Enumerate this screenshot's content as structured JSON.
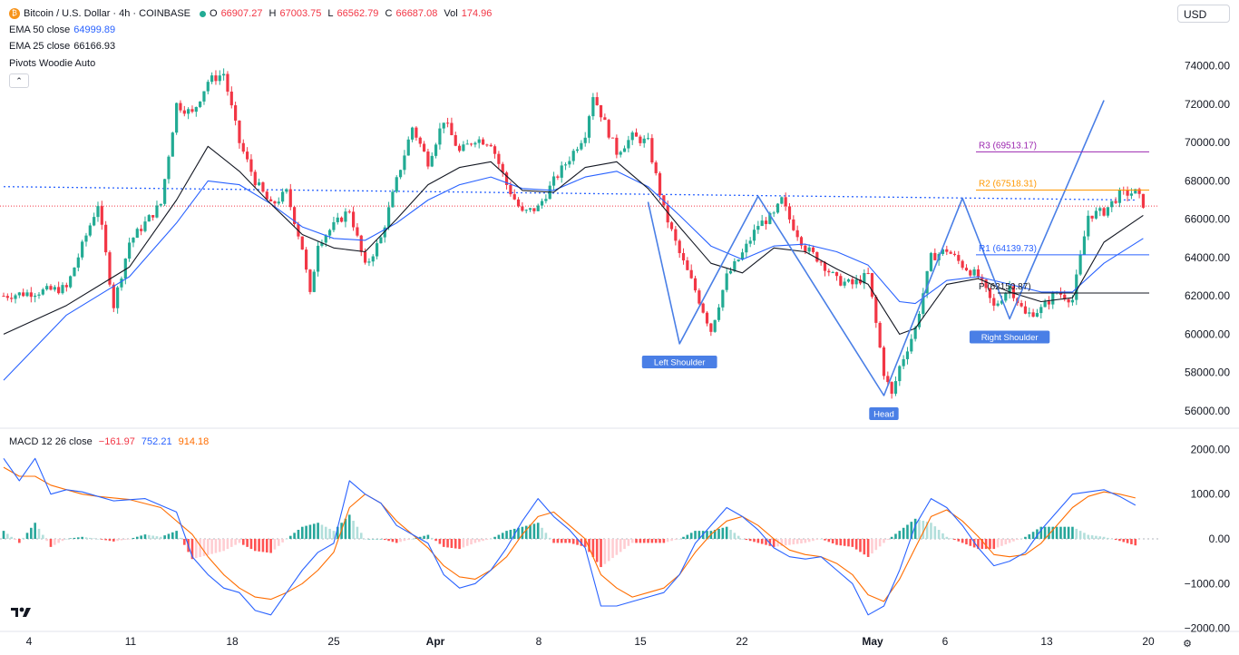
{
  "header": {
    "symbol": "Bitcoin / U.S. Dollar · 4h · COINBASE",
    "o_label": "O",
    "o": "66907.27",
    "h_label": "H",
    "h": "67003.75",
    "l_label": "L",
    "l": "66562.79",
    "c_label": "C",
    "c": "66687.08",
    "vol_label": "Vol",
    "vol": "174.96",
    "currency": "USD",
    "collapse": "⌃"
  },
  "indicators": {
    "ema50_label": "EMA 50 close",
    "ema50_value": "64999.89",
    "ema25_label": "EMA 25 close",
    "ema25_value": "66166.93",
    "pivots_label": "Pivots Woodie Auto",
    "macd_label": "MACD 12 26 close",
    "macd_hist": "−161.97",
    "macd_line": "752.21",
    "macd_signal": "914.18"
  },
  "colors": {
    "up": "#22ab94",
    "down": "#f23645",
    "ema25": "#131722",
    "ema50": "#2962ff",
    "pattern": "#4a7fe6",
    "r3": "#9c27b0",
    "r2": "#ff9800",
    "r1": "#2962ff",
    "p": "#131722",
    "macd": "#2962ff",
    "signal": "#ff6d00"
  },
  "chart_data": [
    {
      "type": "candlestick",
      "title": "Bitcoin / U.S. Dollar · 4h · COINBASE",
      "ylim": [
        55000,
        75500
      ],
      "y_ticks": [
        "74000.00",
        "72000.00",
        "70000.00",
        "68000.00",
        "66000.00",
        "64000.00",
        "62000.00",
        "60000.00",
        "58000.00",
        "56000.00"
      ],
      "x_ticks": [
        "4",
        "11",
        "18",
        "25",
        "Apr",
        "8",
        "15",
        "22",
        "May",
        "6",
        "13",
        "20"
      ],
      "price_path": [
        [
          0,
          62000
        ],
        [
          4,
          62400
        ],
        [
          6,
          66800
        ],
        [
          7,
          61500
        ],
        [
          8,
          64800
        ],
        [
          10,
          66800
        ],
        [
          11,
          72000
        ],
        [
          12,
          71500
        ],
        [
          13,
          73200
        ],
        [
          14,
          73600
        ],
        [
          15,
          70000
        ],
        [
          16,
          68000
        ],
        [
          17,
          66700
        ],
        [
          18,
          67400
        ],
        [
          19,
          64500
        ],
        [
          19.5,
          62000
        ],
        [
          20,
          64800
        ],
        [
          22,
          66500
        ],
        [
          23,
          63500
        ],
        [
          24,
          65000
        ],
        [
          25,
          68000
        ],
        [
          26,
          70800
        ],
        [
          27,
          69000
        ],
        [
          28,
          71200
        ],
        [
          29,
          69500
        ],
        [
          30,
          70200
        ],
        [
          31,
          70000
        ],
        [
          32,
          67800
        ],
        [
          33,
          66300
        ],
        [
          34,
          66600
        ],
        [
          35,
          68000
        ],
        [
          36,
          69200
        ],
        [
          37,
          70500
        ],
        [
          37.5,
          72500
        ],
        [
          38,
          71500
        ],
        [
          39,
          69500
        ],
        [
          40,
          70300
        ],
        [
          41,
          70000
        ],
        [
          42,
          66500
        ],
        [
          43,
          64200
        ],
        [
          44,
          62300
        ],
        [
          45,
          60200
        ],
        [
          46,
          63000
        ],
        [
          47,
          64200
        ],
        [
          48,
          65700
        ],
        [
          49,
          66200
        ],
        [
          49.5,
          67000
        ],
        [
          50,
          66000
        ],
        [
          51,
          64500
        ],
        [
          52,
          63800
        ],
        [
          53,
          62800
        ],
        [
          54,
          62600
        ],
        [
          55,
          63100
        ],
        [
          56,
          58000
        ],
        [
          56.5,
          56800
        ],
        [
          57,
          58300
        ],
        [
          58,
          60300
        ],
        [
          59,
          64000
        ],
        [
          60,
          64400
        ],
        [
          61,
          63600
        ],
        [
          62,
          63000
        ],
        [
          63,
          61400
        ],
        [
          64,
          62500
        ],
        [
          65,
          61000
        ],
        [
          66,
          61300
        ],
        [
          67,
          62200
        ],
        [
          68,
          61800
        ],
        [
          69,
          66200
        ],
        [
          70,
          66400
        ],
        [
          71,
          67300
        ],
        [
          72,
          67400
        ],
        [
          72.5,
          66800
        ]
      ],
      "ema25_path": [
        [
          0,
          60000
        ],
        [
          4,
          61500
        ],
        [
          8,
          63500
        ],
        [
          11,
          67000
        ],
        [
          13,
          69800
        ],
        [
          15,
          68500
        ],
        [
          17,
          66800
        ],
        [
          19,
          65200
        ],
        [
          21,
          64500
        ],
        [
          23,
          64300
        ],
        [
          25,
          66000
        ],
        [
          27,
          67800
        ],
        [
          29,
          68700
        ],
        [
          31,
          69000
        ],
        [
          33,
          67500
        ],
        [
          35,
          67400
        ],
        [
          37,
          68700
        ],
        [
          39,
          69000
        ],
        [
          41,
          67600
        ],
        [
          43,
          65600
        ],
        [
          45,
          63700
        ],
        [
          47,
          63200
        ],
        [
          49,
          64500
        ],
        [
          51,
          64300
        ],
        [
          53,
          63400
        ],
        [
          55,
          62600
        ],
        [
          57,
          60000
        ],
        [
          58,
          60300
        ],
        [
          60,
          62600
        ],
        [
          62,
          62900
        ],
        [
          64,
          62200
        ],
        [
          66,
          61700
        ],
        [
          68,
          61900
        ],
        [
          70,
          64800
        ],
        [
          72.5,
          66200
        ]
      ],
      "ema50_path": [
        [
          0,
          57600
        ],
        [
          4,
          61000
        ],
        [
          8,
          63000
        ],
        [
          11,
          65800
        ],
        [
          13,
          68000
        ],
        [
          15,
          67800
        ],
        [
          17,
          66800
        ],
        [
          19,
          65600
        ],
        [
          21,
          65000
        ],
        [
          23,
          64900
        ],
        [
          25,
          65800
        ],
        [
          27,
          67000
        ],
        [
          29,
          67800
        ],
        [
          31,
          68200
        ],
        [
          33,
          67600
        ],
        [
          35,
          67500
        ],
        [
          37,
          68200
        ],
        [
          39,
          68500
        ],
        [
          41,
          67700
        ],
        [
          43,
          66200
        ],
        [
          45,
          64600
        ],
        [
          47,
          63900
        ],
        [
          49,
          64600
        ],
        [
          51,
          64700
        ],
        [
          53,
          64300
        ],
        [
          55,
          63600
        ],
        [
          57,
          61700
        ],
        [
          58,
          61600
        ],
        [
          60,
          62800
        ],
        [
          62,
          63000
        ],
        [
          64,
          62600
        ],
        [
          66,
          62200
        ],
        [
          68,
          62200
        ],
        [
          70,
          63700
        ],
        [
          72.5,
          64999.89
        ]
      ],
      "pattern_path": [
        [
          41,
          66900
        ],
        [
          43,
          59500
        ],
        [
          48,
          67200
        ],
        [
          56,
          56800
        ],
        [
          61,
          67100
        ],
        [
          64,
          60800
        ],
        [
          70,
          72200
        ]
      ],
      "resistance": {
        "label": "dotted descending line",
        "from": [
          0,
          67700
        ],
        "to": [
          72,
          67000
        ]
      },
      "last_price_line": 66687.08,
      "pivots": [
        {
          "label": "R3",
          "value": "69513.17"
        },
        {
          "label": "R2",
          "value": "67518.31"
        },
        {
          "label": "R1",
          "value": "64139.73"
        },
        {
          "label": "P",
          "value": "62150.87",
          "shown": "(62150.87)"
        }
      ],
      "annotations": [
        {
          "label": "Left Shoulder",
          "x": 43,
          "y": 59500
        },
        {
          "label": "Head",
          "x": 56,
          "y": 56800
        },
        {
          "label": "Right Shoulder",
          "x": 64,
          "y": 60800
        }
      ]
    },
    {
      "type": "macd",
      "title": "MACD 12 26 close",
      "ylim": [
        -2000,
        2000
      ],
      "y_ticks": [
        "2000.00",
        "1000.00",
        "0.00",
        "−1000.00",
        "−2000.00"
      ],
      "macd_path": [
        [
          0,
          1800
        ],
        [
          1,
          1300
        ],
        [
          2,
          1800
        ],
        [
          3,
          1000
        ],
        [
          4,
          1100
        ],
        [
          5,
          1050
        ],
        [
          6,
          950
        ],
        [
          7,
          850
        ],
        [
          9,
          900
        ],
        [
          11,
          600
        ],
        [
          12,
          -400
        ],
        [
          13,
          -800
        ],
        [
          14,
          -1100
        ],
        [
          15,
          -1200
        ],
        [
          16,
          -1600
        ],
        [
          17,
          -1700
        ],
        [
          18,
          -1200
        ],
        [
          19,
          -700
        ],
        [
          20,
          -300
        ],
        [
          21,
          -100
        ],
        [
          22,
          1300
        ],
        [
          23,
          1000
        ],
        [
          24,
          800
        ],
        [
          25,
          300
        ],
        [
          26,
          100
        ],
        [
          27,
          -100
        ],
        [
          28,
          -800
        ],
        [
          29,
          -1100
        ],
        [
          30,
          -1000
        ],
        [
          31,
          -700
        ],
        [
          32,
          -200
        ],
        [
          33,
          400
        ],
        [
          34,
          900
        ],
        [
          35,
          500
        ],
        [
          36,
          200
        ],
        [
          37,
          -200
        ],
        [
          38,
          -1500
        ],
        [
          39,
          -1500
        ],
        [
          40,
          -1400
        ],
        [
          41,
          -1300
        ],
        [
          42,
          -1200
        ],
        [
          43,
          -800
        ],
        [
          44,
          -100
        ],
        [
          45,
          300
        ],
        [
          46,
          700
        ],
        [
          47,
          500
        ],
        [
          48,
          200
        ],
        [
          49,
          -200
        ],
        [
          50,
          -400
        ],
        [
          51,
          -450
        ],
        [
          52,
          -400
        ],
        [
          53,
          -700
        ],
        [
          54,
          -1000
        ],
        [
          55,
          -1700
        ],
        [
          56,
          -1500
        ],
        [
          57,
          -700
        ],
        [
          58,
          300
        ],
        [
          59,
          900
        ],
        [
          60,
          700
        ],
        [
          61,
          300
        ],
        [
          62,
          -200
        ],
        [
          63,
          -600
        ],
        [
          64,
          -500
        ],
        [
          65,
          -300
        ],
        [
          66,
          200
        ],
        [
          67,
          600
        ],
        [
          68,
          1000
        ],
        [
          69,
          1050
        ],
        [
          70,
          1100
        ],
        [
          71,
          950
        ],
        [
          72,
          752
        ]
      ],
      "signal_path": [
        [
          0,
          1600
        ],
        [
          1,
          1400
        ],
        [
          2,
          1400
        ],
        [
          3,
          1200
        ],
        [
          4,
          1100
        ],
        [
          5,
          1000
        ],
        [
          6,
          950
        ],
        [
          8,
          880
        ],
        [
          10,
          700
        ],
        [
          12,
          100
        ],
        [
          13,
          -400
        ],
        [
          14,
          -800
        ],
        [
          15,
          -1100
        ],
        [
          16,
          -1300
        ],
        [
          17,
          -1350
        ],
        [
          18,
          -1200
        ],
        [
          19,
          -1000
        ],
        [
          20,
          -700
        ],
        [
          21,
          -300
        ],
        [
          22,
          700
        ],
        [
          23,
          1000
        ],
        [
          24,
          800
        ],
        [
          25,
          400
        ],
        [
          26,
          100
        ],
        [
          27,
          -200
        ],
        [
          28,
          -600
        ],
        [
          29,
          -850
        ],
        [
          30,
          -900
        ],
        [
          31,
          -700
        ],
        [
          32,
          -400
        ],
        [
          33,
          100
        ],
        [
          34,
          500
        ],
        [
          35,
          600
        ],
        [
          36,
          300
        ],
        [
          37,
          0
        ],
        [
          38,
          -800
        ],
        [
          39,
          -1100
        ],
        [
          40,
          -1300
        ],
        [
          41,
          -1200
        ],
        [
          42,
          -1100
        ],
        [
          43,
          -800
        ],
        [
          44,
          -300
        ],
        [
          45,
          100
        ],
        [
          46,
          400
        ],
        [
          47,
          500
        ],
        [
          48,
          300
        ],
        [
          49,
          0
        ],
        [
          50,
          -250
        ],
        [
          51,
          -350
        ],
        [
          52,
          -400
        ],
        [
          53,
          -550
        ],
        [
          54,
          -800
        ],
        [
          55,
          -1250
        ],
        [
          56,
          -1400
        ],
        [
          57,
          -900
        ],
        [
          58,
          -200
        ],
        [
          59,
          500
        ],
        [
          60,
          650
        ],
        [
          61,
          400
        ],
        [
          62,
          50
        ],
        [
          63,
          -350
        ],
        [
          64,
          -400
        ],
        [
          65,
          -350
        ],
        [
          66,
          -100
        ],
        [
          67,
          300
        ],
        [
          68,
          700
        ],
        [
          69,
          950
        ],
        [
          70,
          1050
        ],
        [
          71,
          1000
        ],
        [
          72,
          914
        ]
      ]
    }
  ]
}
